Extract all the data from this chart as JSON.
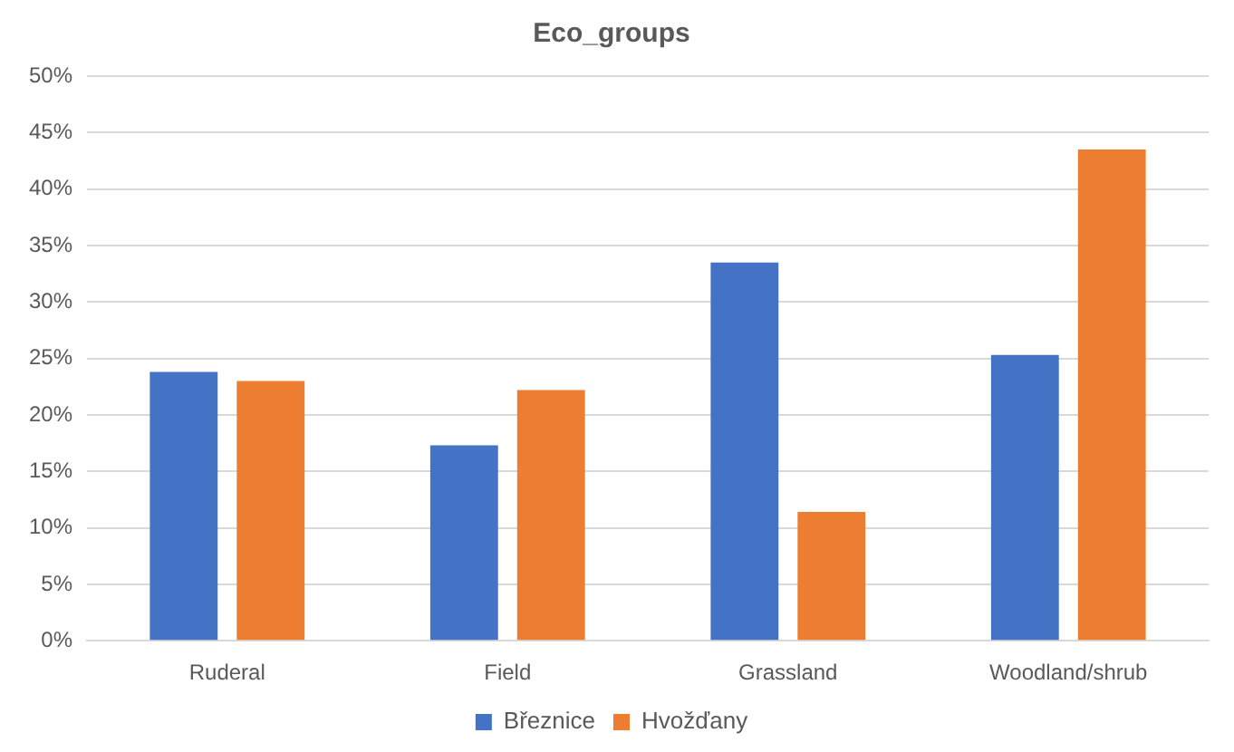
{
  "chart_data": {
    "type": "bar",
    "title": "Eco_groups",
    "categories": [
      "Ruderal",
      "Field",
      "Grassland",
      "Woodland/shrub"
    ],
    "series": [
      {
        "name": "Březnice",
        "color": "#4472c4",
        "values": [
          23.8,
          17.3,
          33.5,
          25.3
        ]
      },
      {
        "name": "Hvožďany",
        "color": "#ed7d31",
        "values": [
          23.0,
          22.2,
          11.4,
          43.5
        ]
      }
    ],
    "ylim": [
      0,
      50
    ],
    "yticks": [
      {
        "value": 0,
        "label": "0%"
      },
      {
        "value": 5,
        "label": "5%"
      },
      {
        "value": 10,
        "label": "10%"
      },
      {
        "value": 15,
        "label": "15%"
      },
      {
        "value": 20,
        "label": "20%"
      },
      {
        "value": 25,
        "label": "25%"
      },
      {
        "value": 30,
        "label": "30%"
      },
      {
        "value": 35,
        "label": "35%"
      },
      {
        "value": 40,
        "label": "40%"
      },
      {
        "value": 45,
        "label": "45%"
      },
      {
        "value": 50,
        "label": "50%"
      }
    ],
    "grid": "y",
    "legend": "bottom"
  }
}
